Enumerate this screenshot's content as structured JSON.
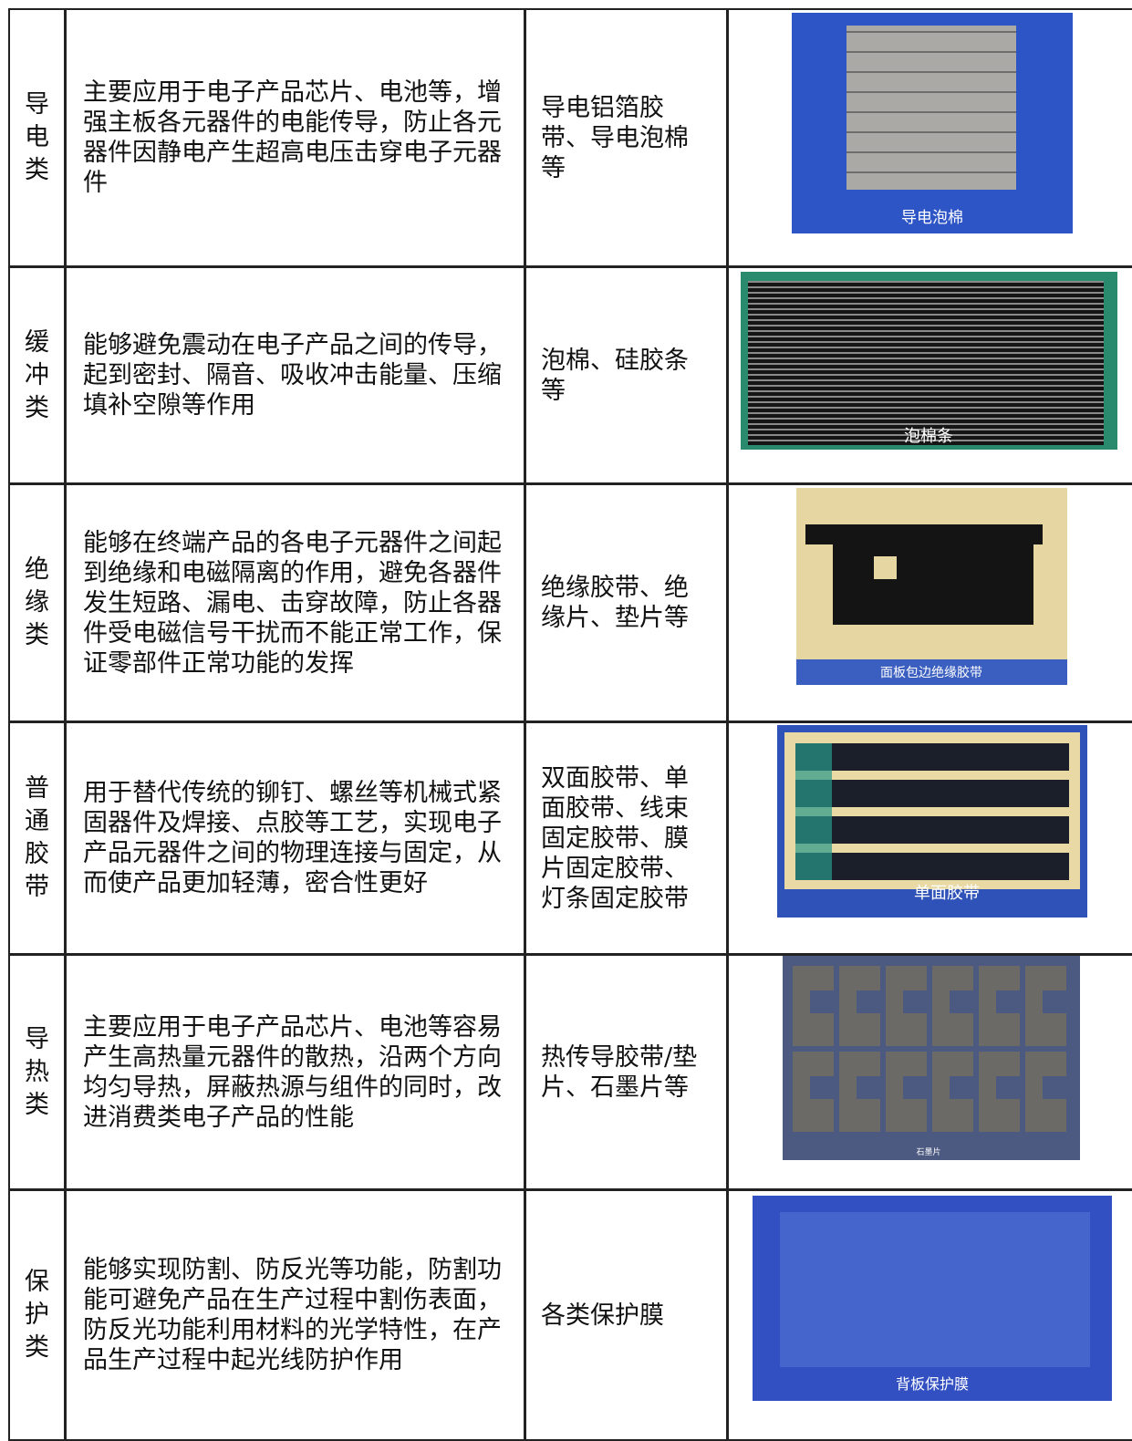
{
  "table": {
    "rows": [
      {
        "category": "导电类",
        "description": "主要应用于电子产品芯片、电池等，增强主板各元器件的电能传导，防止各元器件因静电产生超高电压击穿电子元器件",
        "products": "导电铝箔胶带、导电泡棉等",
        "caption": "导电泡棉"
      },
      {
        "category": "缓冲类",
        "description": "能够避免震动在电子产品之间的传导，起到密封、隔音、吸收冲击能量、压缩填补空隙等作用",
        "products": "泡棉、硅胶条等",
        "caption": "泡棉条"
      },
      {
        "category": "绝缘类",
        "description": "能够在终端产品的各电子元器件之间起到绝缘和电磁隔离的作用，避免各器件发生短路、漏电、击穿故障，防止各器件受电磁信号干扰而不能正常工作，保证零部件正常功能的发挥",
        "products": "绝缘胶带、绝缘片、垫片等",
        "caption": "面板包边绝缘胶带"
      },
      {
        "category": "普通胶带",
        "description": "用于替代传统的铆钉、螺丝等机械式紧固器件及焊接、点胶等工艺，实现电子产品元器件之间的物理连接与固定，从而使产品更加轻薄，密合性更好",
        "products": "双面胶带、单面胶带、线束固定胶带、膜片固定胶带、灯条固定胶带",
        "caption": "单面胶带"
      },
      {
        "category": "导热类",
        "description": "主要应用于电子产品芯片、电池等容易产生高热量元器件的散热，沿两个方向均匀导热，屏蔽热源与组件的同时，改进消费类电子产品的性能",
        "products": "热传导胶带/垫片、石墨片等",
        "caption": "石墨片"
      },
      {
        "category": "保护类",
        "description": "能够实现防割、防反光等功能，防割功能可避免产品在生产过程中割伤表面，防反光功能利用材料的光学特性，在产品生产过程中起光线防护作用",
        "products": "各类保护膜",
        "caption": "背板保护膜"
      }
    ]
  }
}
